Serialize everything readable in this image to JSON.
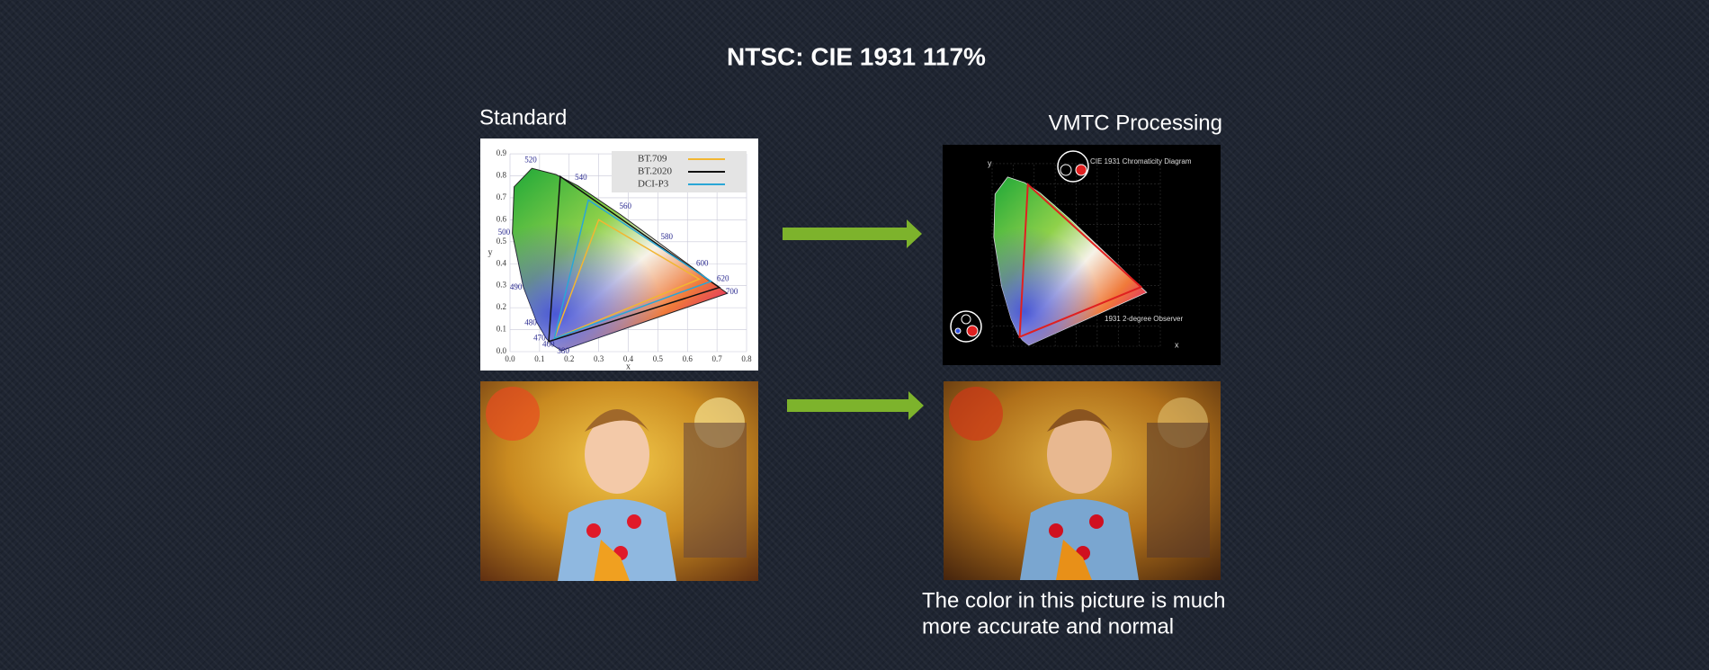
{
  "title": "NTSC: CIE 1931 117%",
  "standard": {
    "label": "Standard",
    "diagram": {
      "legend": [
        "BT.709",
        "BT.2020",
        "DCI-P3"
      ],
      "x_label": "x",
      "y_label": "y",
      "x_ticks": [
        "0.0",
        "0.1",
        "0.2",
        "0.3",
        "0.4",
        "0.5",
        "0.6",
        "0.7",
        "0.8"
      ],
      "y_ticks": [
        "0.0",
        "0.1",
        "0.2",
        "0.3",
        "0.4",
        "0.5",
        "0.6",
        "0.7",
        "0.8",
        "0.9"
      ],
      "wavelengths": [
        "380",
        "460",
        "470",
        "480",
        "490",
        "500",
        "520",
        "540",
        "560",
        "580",
        "600",
        "620",
        "700"
      ]
    }
  },
  "processed": {
    "label": "VMTC Processing",
    "diagram": {
      "title": "CIE 1931 Chromaticity Diagram",
      "note": "1931 2-degree Observer",
      "x_label": "x",
      "y_label": "y"
    }
  },
  "caption": [
    "The color in this picture is much",
    "more accurate and normal"
  ]
}
